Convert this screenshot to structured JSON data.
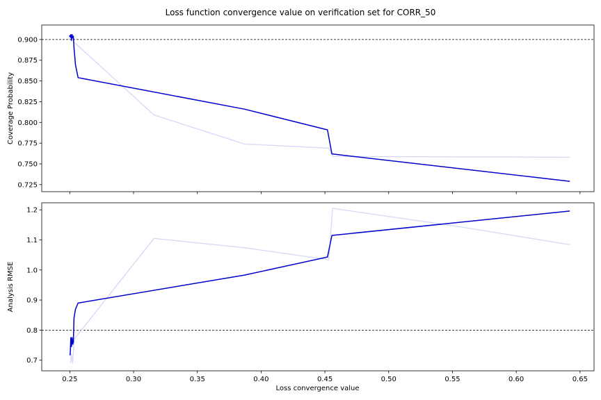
{
  "title": "Loss function convergence value on verification set for CORR_50",
  "chart_data": [
    {
      "type": "line",
      "name": "top-panel",
      "xlabel": "",
      "ylabel": "Coverage Probability",
      "xlim": [
        0.228,
        0.661
      ],
      "ylim": [
        0.7165,
        0.9175
      ],
      "xticks": [
        0.25,
        0.3,
        0.35,
        0.4,
        0.45,
        0.5,
        0.55,
        0.6,
        0.65
      ],
      "xtick_labels": [],
      "yticks": [
        0.725,
        0.75,
        0.775,
        0.8,
        0.825,
        0.85,
        0.875,
        0.9
      ],
      "ytick_labels": [
        "0.725",
        "0.750",
        "0.775",
        "0.800",
        "0.825",
        "0.850",
        "0.875",
        "0.900"
      ],
      "reference_line": 0.9,
      "series": [
        {
          "color": "#d6d6f7",
          "x": [
            0.2505,
            0.2515,
            0.2525,
            0.316,
            0.387,
            0.453,
            0.456,
            0.642
          ],
          "y": [
            0.902,
            0.905,
            0.898,
            0.809,
            0.774,
            0.769,
            0.759,
            0.758
          ]
        },
        {
          "color": "#0000cc",
          "x": [
            0.2497,
            0.2503,
            0.2508,
            0.2513,
            0.2518,
            0.2523,
            0.2528,
            0.2533,
            0.2545,
            0.2565,
            0.387,
            0.452,
            0.4555,
            0.642
          ],
          "y": [
            0.905,
            0.903,
            0.906,
            0.899,
            0.906,
            0.902,
            0.904,
            0.89,
            0.869,
            0.854,
            0.816,
            0.791,
            0.762,
            0.729
          ]
        }
      ]
    },
    {
      "type": "line",
      "name": "bottom-panel",
      "xlabel": "Loss convergence value",
      "ylabel": "Analysis RMSE",
      "xlim": [
        0.228,
        0.661
      ],
      "ylim": [
        0.6645,
        1.2235
      ],
      "xticks": [
        0.25,
        0.3,
        0.35,
        0.4,
        0.45,
        0.5,
        0.55,
        0.6,
        0.65
      ],
      "xtick_labels": [
        "0.25",
        "0.30",
        "0.35",
        "0.40",
        "0.45",
        "0.50",
        "0.55",
        "0.60",
        "0.65"
      ],
      "yticks": [
        0.7,
        0.8,
        0.9,
        1.0,
        1.1,
        1.2
      ],
      "ytick_labels": [
        "0.7",
        "0.8",
        "0.9",
        "1.0",
        "1.1",
        "1.2"
      ],
      "reference_line": 0.8,
      "series": [
        {
          "color": "#d6d6f7",
          "x": [
            0.2505,
            0.2512,
            0.2522,
            0.2535,
            0.316,
            0.387,
            0.453,
            0.456,
            0.56,
            0.642
          ],
          "y": [
            0.69,
            0.72,
            0.69,
            0.77,
            1.105,
            1.074,
            1.034,
            1.205,
            1.141,
            1.084
          ],
          "note": ""
        },
        {
          "color": "#0000cc",
          "x": [
            0.2497,
            0.2503,
            0.2508,
            0.2513,
            0.2518,
            0.2523,
            0.2528,
            0.2533,
            0.2545,
            0.2565,
            0.387,
            0.452,
            0.4555,
            0.642
          ],
          "y": [
            0.718,
            0.718,
            0.775,
            0.745,
            0.775,
            0.753,
            0.76,
            0.84,
            0.87,
            0.89,
            0.983,
            1.043,
            1.115,
            1.196
          ]
        }
      ]
    }
  ]
}
